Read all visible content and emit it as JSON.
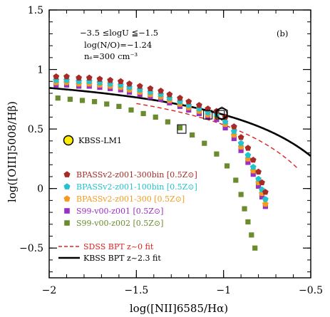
{
  "chart_data": {
    "type": "scatter",
    "panel_label": "(b)",
    "xlabel": "log([NII]6585/Hα)",
    "ylabel": "log([OIII]5008/Hβ)",
    "xlim": [
      -2,
      -0.5
    ],
    "ylim": [
      -0.75,
      1.5
    ],
    "x_ticks": [
      {
        "value": -2,
        "label": "−2"
      },
      {
        "value": -1.5,
        "label": "−1.5"
      },
      {
        "value": -1,
        "label": "−1"
      },
      {
        "value": -0.5,
        "label": "−0.5"
      }
    ],
    "y_ticks": [
      {
        "value": -0.5,
        "label": "−0.5"
      },
      {
        "value": 0,
        "label": "0"
      },
      {
        "value": 0.5,
        "label": "0.5"
      },
      {
        "value": 1,
        "label": "1"
      },
      {
        "value": 1.5,
        "label": "1.5"
      }
    ],
    "annotations": {
      "logU": "−3.5 ≤logU ≦−1.5",
      "no": "log(N/O)=−1.24",
      "ne": "nₑ=300 cm⁻³"
    },
    "series": [
      {
        "name": "BPASSv2-z001-300bin [0.5Z⊙]",
        "color": "#a82a26",
        "marker": "pentagon",
        "x": [
          -1.96,
          -1.9,
          -1.83,
          -1.77,
          -1.71,
          -1.65,
          -1.59,
          -1.54,
          -1.48,
          -1.42,
          -1.36,
          -1.31,
          -1.25,
          -1.2,
          -1.14,
          -1.09,
          -1.04,
          -0.99,
          -0.94,
          -0.9,
          -0.86,
          -0.83,
          -0.8,
          -0.78,
          -0.76
        ],
        "y": [
          0.94,
          0.94,
          0.93,
          0.93,
          0.92,
          0.91,
          0.9,
          0.88,
          0.86,
          0.84,
          0.82,
          0.79,
          0.76,
          0.73,
          0.7,
          0.67,
          0.65,
          0.6,
          0.52,
          0.43,
          0.34,
          0.24,
          0.14,
          0.05,
          -0.03
        ]
      },
      {
        "name": "BPASSv2-z001-100bin [0.5Z⊙]",
        "color": "#23c2cc",
        "marker": "pentagon",
        "x": [
          -1.96,
          -1.9,
          -1.83,
          -1.77,
          -1.71,
          -1.65,
          -1.59,
          -1.54,
          -1.48,
          -1.42,
          -1.36,
          -1.31,
          -1.25,
          -1.2,
          -1.14,
          -1.09,
          -1.04,
          -0.99,
          -0.94,
          -0.9,
          -0.86,
          -0.83,
          -0.8,
          -0.78,
          -0.76
        ],
        "y": [
          0.91,
          0.91,
          0.9,
          0.9,
          0.89,
          0.88,
          0.87,
          0.85,
          0.83,
          0.81,
          0.79,
          0.76,
          0.73,
          0.7,
          0.67,
          0.64,
          0.62,
          0.56,
          0.48,
          0.38,
          0.28,
          0.18,
          0.08,
          -0.01,
          -0.09
        ]
      },
      {
        "name": "BPASSv2-z001-300 [0.5Z⊙]",
        "color": "#f59a1a",
        "marker": "pentagon",
        "x": [
          -1.96,
          -1.9,
          -1.83,
          -1.77,
          -1.71,
          -1.65,
          -1.59,
          -1.54,
          -1.48,
          -1.42,
          -1.36,
          -1.31,
          -1.25,
          -1.2,
          -1.14,
          -1.09,
          -1.04,
          -0.99,
          -0.94,
          -0.9,
          -0.86,
          -0.83,
          -0.8,
          -0.78,
          -0.76
        ],
        "y": [
          0.89,
          0.89,
          0.88,
          0.88,
          0.87,
          0.86,
          0.85,
          0.83,
          0.81,
          0.79,
          0.77,
          0.74,
          0.71,
          0.68,
          0.65,
          0.62,
          0.6,
          0.54,
          0.45,
          0.35,
          0.25,
          0.15,
          0.05,
          -0.04,
          -0.13
        ]
      },
      {
        "name": "S99-v00-z001 [0.5Z⊙]",
        "color": "#9a2fc4",
        "marker": "square",
        "x": [
          -1.96,
          -1.9,
          -1.83,
          -1.77,
          -1.71,
          -1.65,
          -1.59,
          -1.54,
          -1.48,
          -1.42,
          -1.36,
          -1.31,
          -1.25,
          -1.2,
          -1.14,
          -1.09,
          -1.04,
          -0.99,
          -0.94,
          -0.9,
          -0.86,
          -0.83,
          -0.8,
          -0.78,
          -0.76
        ],
        "y": [
          0.87,
          0.87,
          0.86,
          0.86,
          0.85,
          0.84,
          0.83,
          0.81,
          0.79,
          0.77,
          0.75,
          0.72,
          0.69,
          0.66,
          0.63,
          0.6,
          0.58,
          0.51,
          0.42,
          0.32,
          0.22,
          0.12,
          0.02,
          -0.07,
          -0.15
        ]
      },
      {
        "name": "S99-v00-z002 [0.5Z⊙]",
        "color": "#6a8c2e",
        "marker": "square",
        "x": [
          -1.95,
          -1.88,
          -1.81,
          -1.74,
          -1.67,
          -1.6,
          -1.53,
          -1.46,
          -1.39,
          -1.32,
          -1.25,
          -1.18,
          -1.11,
          -1.04,
          -0.98,
          -0.93,
          -0.9,
          -0.88,
          -0.86,
          -0.84,
          -0.82
        ],
        "y": [
          0.76,
          0.75,
          0.74,
          0.73,
          0.71,
          0.69,
          0.66,
          0.63,
          0.6,
          0.56,
          0.51,
          0.45,
          0.38,
          0.29,
          0.19,
          0.07,
          -0.05,
          -0.17,
          -0.28,
          -0.39,
          -0.5
        ]
      }
    ],
    "kbss_lm1": {
      "label": "KBSS-LM1",
      "x": -1.01,
      "y": 0.63,
      "color": "#ffee00"
    },
    "highlighted_x": [
      -1.24,
      -1.09,
      -1.02
    ],
    "lines": [
      {
        "name": "SDSS BPT z~0 fit",
        "color": "#e02020",
        "style": "dashed"
      },
      {
        "name": "KBSS BPT z~2.3 fit",
        "color": "#000000",
        "style": "solid"
      }
    ]
  }
}
